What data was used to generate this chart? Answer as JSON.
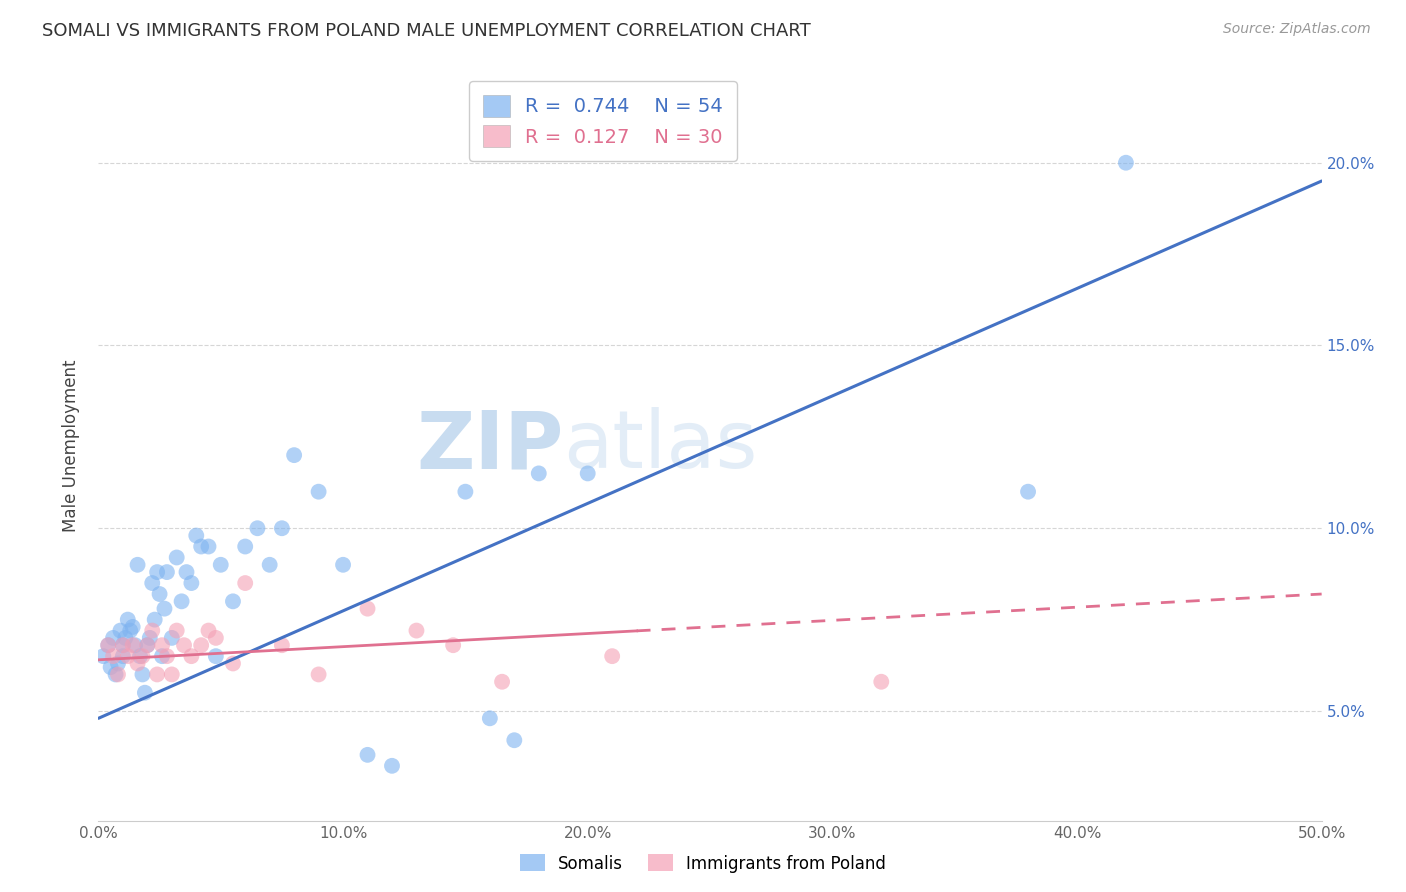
{
  "title": "SOMALI VS IMMIGRANTS FROM POLAND MALE UNEMPLOYMENT CORRELATION CHART",
  "source": "Source: ZipAtlas.com",
  "ylabel": "Male Unemployment",
  "x_ticks": [
    0.0,
    0.1,
    0.2,
    0.3,
    0.4,
    0.5
  ],
  "x_tick_labels": [
    "0.0%",
    "10.0%",
    "20.0%",
    "30.0%",
    "40.0%",
    "50.0%"
  ],
  "y_ticks": [
    0.05,
    0.1,
    0.15,
    0.2
  ],
  "y_tick_labels": [
    "5.0%",
    "10.0%",
    "15.0%",
    "20.0%"
  ],
  "xlim": [
    0.0,
    0.5
  ],
  "ylim": [
    0.02,
    0.225
  ],
  "somali_R": 0.744,
  "somali_N": 54,
  "poland_R": 0.127,
  "poland_N": 30,
  "somali_color": "#7EB3F0",
  "poland_color": "#F4A0B5",
  "somali_line_color": "#4472C4",
  "poland_line_color": "#E07090",
  "watermark_zip_color": "#C8DCF0",
  "watermark_atlas_color": "#C8DCF0",
  "background_color": "#FFFFFF",
  "somali_x": [
    0.002,
    0.004,
    0.005,
    0.006,
    0.007,
    0.008,
    0.009,
    0.01,
    0.01,
    0.011,
    0.012,
    0.013,
    0.014,
    0.015,
    0.016,
    0.017,
    0.018,
    0.019,
    0.02,
    0.021,
    0.022,
    0.023,
    0.024,
    0.025,
    0.026,
    0.027,
    0.028,
    0.03,
    0.032,
    0.034,
    0.036,
    0.038,
    0.04,
    0.042,
    0.045,
    0.048,
    0.05,
    0.055,
    0.06,
    0.065,
    0.07,
    0.075,
    0.08,
    0.09,
    0.1,
    0.11,
    0.12,
    0.15,
    0.16,
    0.17,
    0.18,
    0.2,
    0.38,
    0.42
  ],
  "somali_y": [
    0.065,
    0.068,
    0.062,
    0.07,
    0.06,
    0.063,
    0.072,
    0.065,
    0.068,
    0.07,
    0.075,
    0.072,
    0.073,
    0.068,
    0.09,
    0.065,
    0.06,
    0.055,
    0.068,
    0.07,
    0.085,
    0.075,
    0.088,
    0.082,
    0.065,
    0.078,
    0.088,
    0.07,
    0.092,
    0.08,
    0.088,
    0.085,
    0.098,
    0.095,
    0.095,
    0.065,
    0.09,
    0.08,
    0.095,
    0.1,
    0.09,
    0.1,
    0.12,
    0.11,
    0.09,
    0.038,
    0.035,
    0.11,
    0.048,
    0.042,
    0.115,
    0.115,
    0.11,
    0.2
  ],
  "poland_x": [
    0.004,
    0.006,
    0.008,
    0.01,
    0.012,
    0.014,
    0.016,
    0.018,
    0.02,
    0.022,
    0.024,
    0.026,
    0.028,
    0.03,
    0.032,
    0.035,
    0.038,
    0.042,
    0.045,
    0.048,
    0.055,
    0.06,
    0.075,
    0.09,
    0.11,
    0.13,
    0.145,
    0.165,
    0.21,
    0.32
  ],
  "poland_y": [
    0.068,
    0.065,
    0.06,
    0.068,
    0.065,
    0.068,
    0.063,
    0.065,
    0.068,
    0.072,
    0.06,
    0.068,
    0.065,
    0.06,
    0.072,
    0.068,
    0.065,
    0.068,
    0.072,
    0.07,
    0.063,
    0.085,
    0.068,
    0.06,
    0.078,
    0.072,
    0.068,
    0.058,
    0.065,
    0.058
  ],
  "somali_line_x": [
    0.0,
    0.5
  ],
  "somali_line_y": [
    0.048,
    0.195
  ],
  "poland_line_x": [
    0.0,
    0.5
  ],
  "poland_line_y": [
    0.064,
    0.082
  ]
}
